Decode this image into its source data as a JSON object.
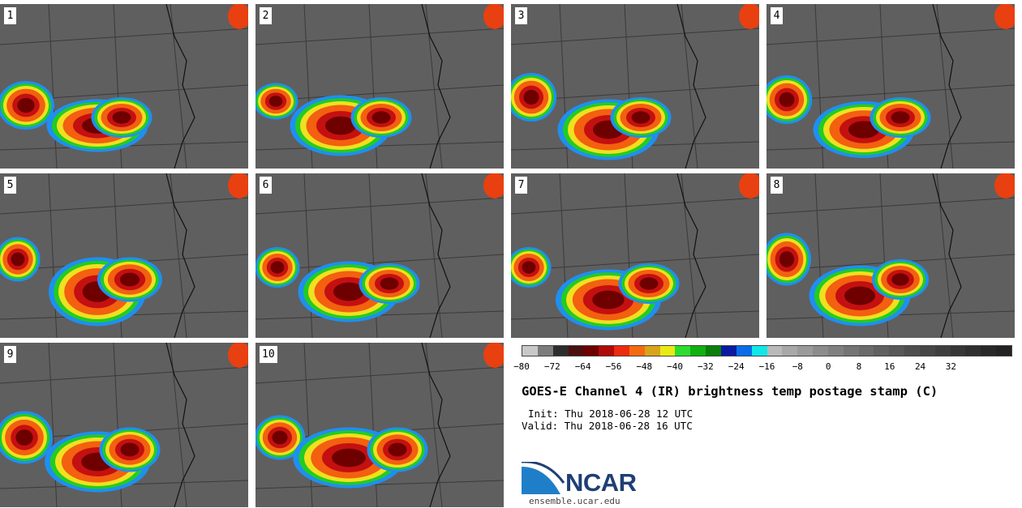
{
  "panels": [
    {
      "label": "1"
    },
    {
      "label": "2"
    },
    {
      "label": "3"
    },
    {
      "label": "4"
    },
    {
      "label": "5"
    },
    {
      "label": "6"
    },
    {
      "label": "7"
    },
    {
      "label": "8"
    },
    {
      "label": "9"
    },
    {
      "label": "10"
    }
  ],
  "colorbar": {
    "colors": [
      "#c8c8c8",
      "#7c7c7c",
      "#2d2d2d",
      "#4a1010",
      "#6e0000",
      "#b00a0a",
      "#ee2a10",
      "#f56a10",
      "#d8a41c",
      "#e9e917",
      "#2ddd2d",
      "#10b010",
      "#0a7f0a",
      "#0a1aa0",
      "#0a6ce8",
      "#10e8e8",
      "#b9b9b9",
      "#a8a8a8",
      "#9a9a9a",
      "#8c8c8c",
      "#808080",
      "#747474",
      "#6a6a6a",
      "#606060",
      "#575757",
      "#4e4e4e",
      "#464646",
      "#3e3e3e",
      "#363636",
      "#2f2f2f",
      "#282828",
      "#222222"
    ],
    "ticks": [
      "−80",
      "−72",
      "−64",
      "−56",
      "−48",
      "−40",
      "−32",
      "−24",
      "−16",
      "−8",
      "0",
      "8",
      "16",
      "24",
      "32"
    ]
  },
  "title": "GOES-E Channel 4 (IR) brightness temp postage stamp (C)",
  "init": "Init: Thu 2018-06-28 12 UTC",
  "valid": "Valid: Thu 2018-06-28 16 UTC",
  "logo": {
    "text": "NCAR",
    "url": "ensemble.ucar.edu"
  }
}
